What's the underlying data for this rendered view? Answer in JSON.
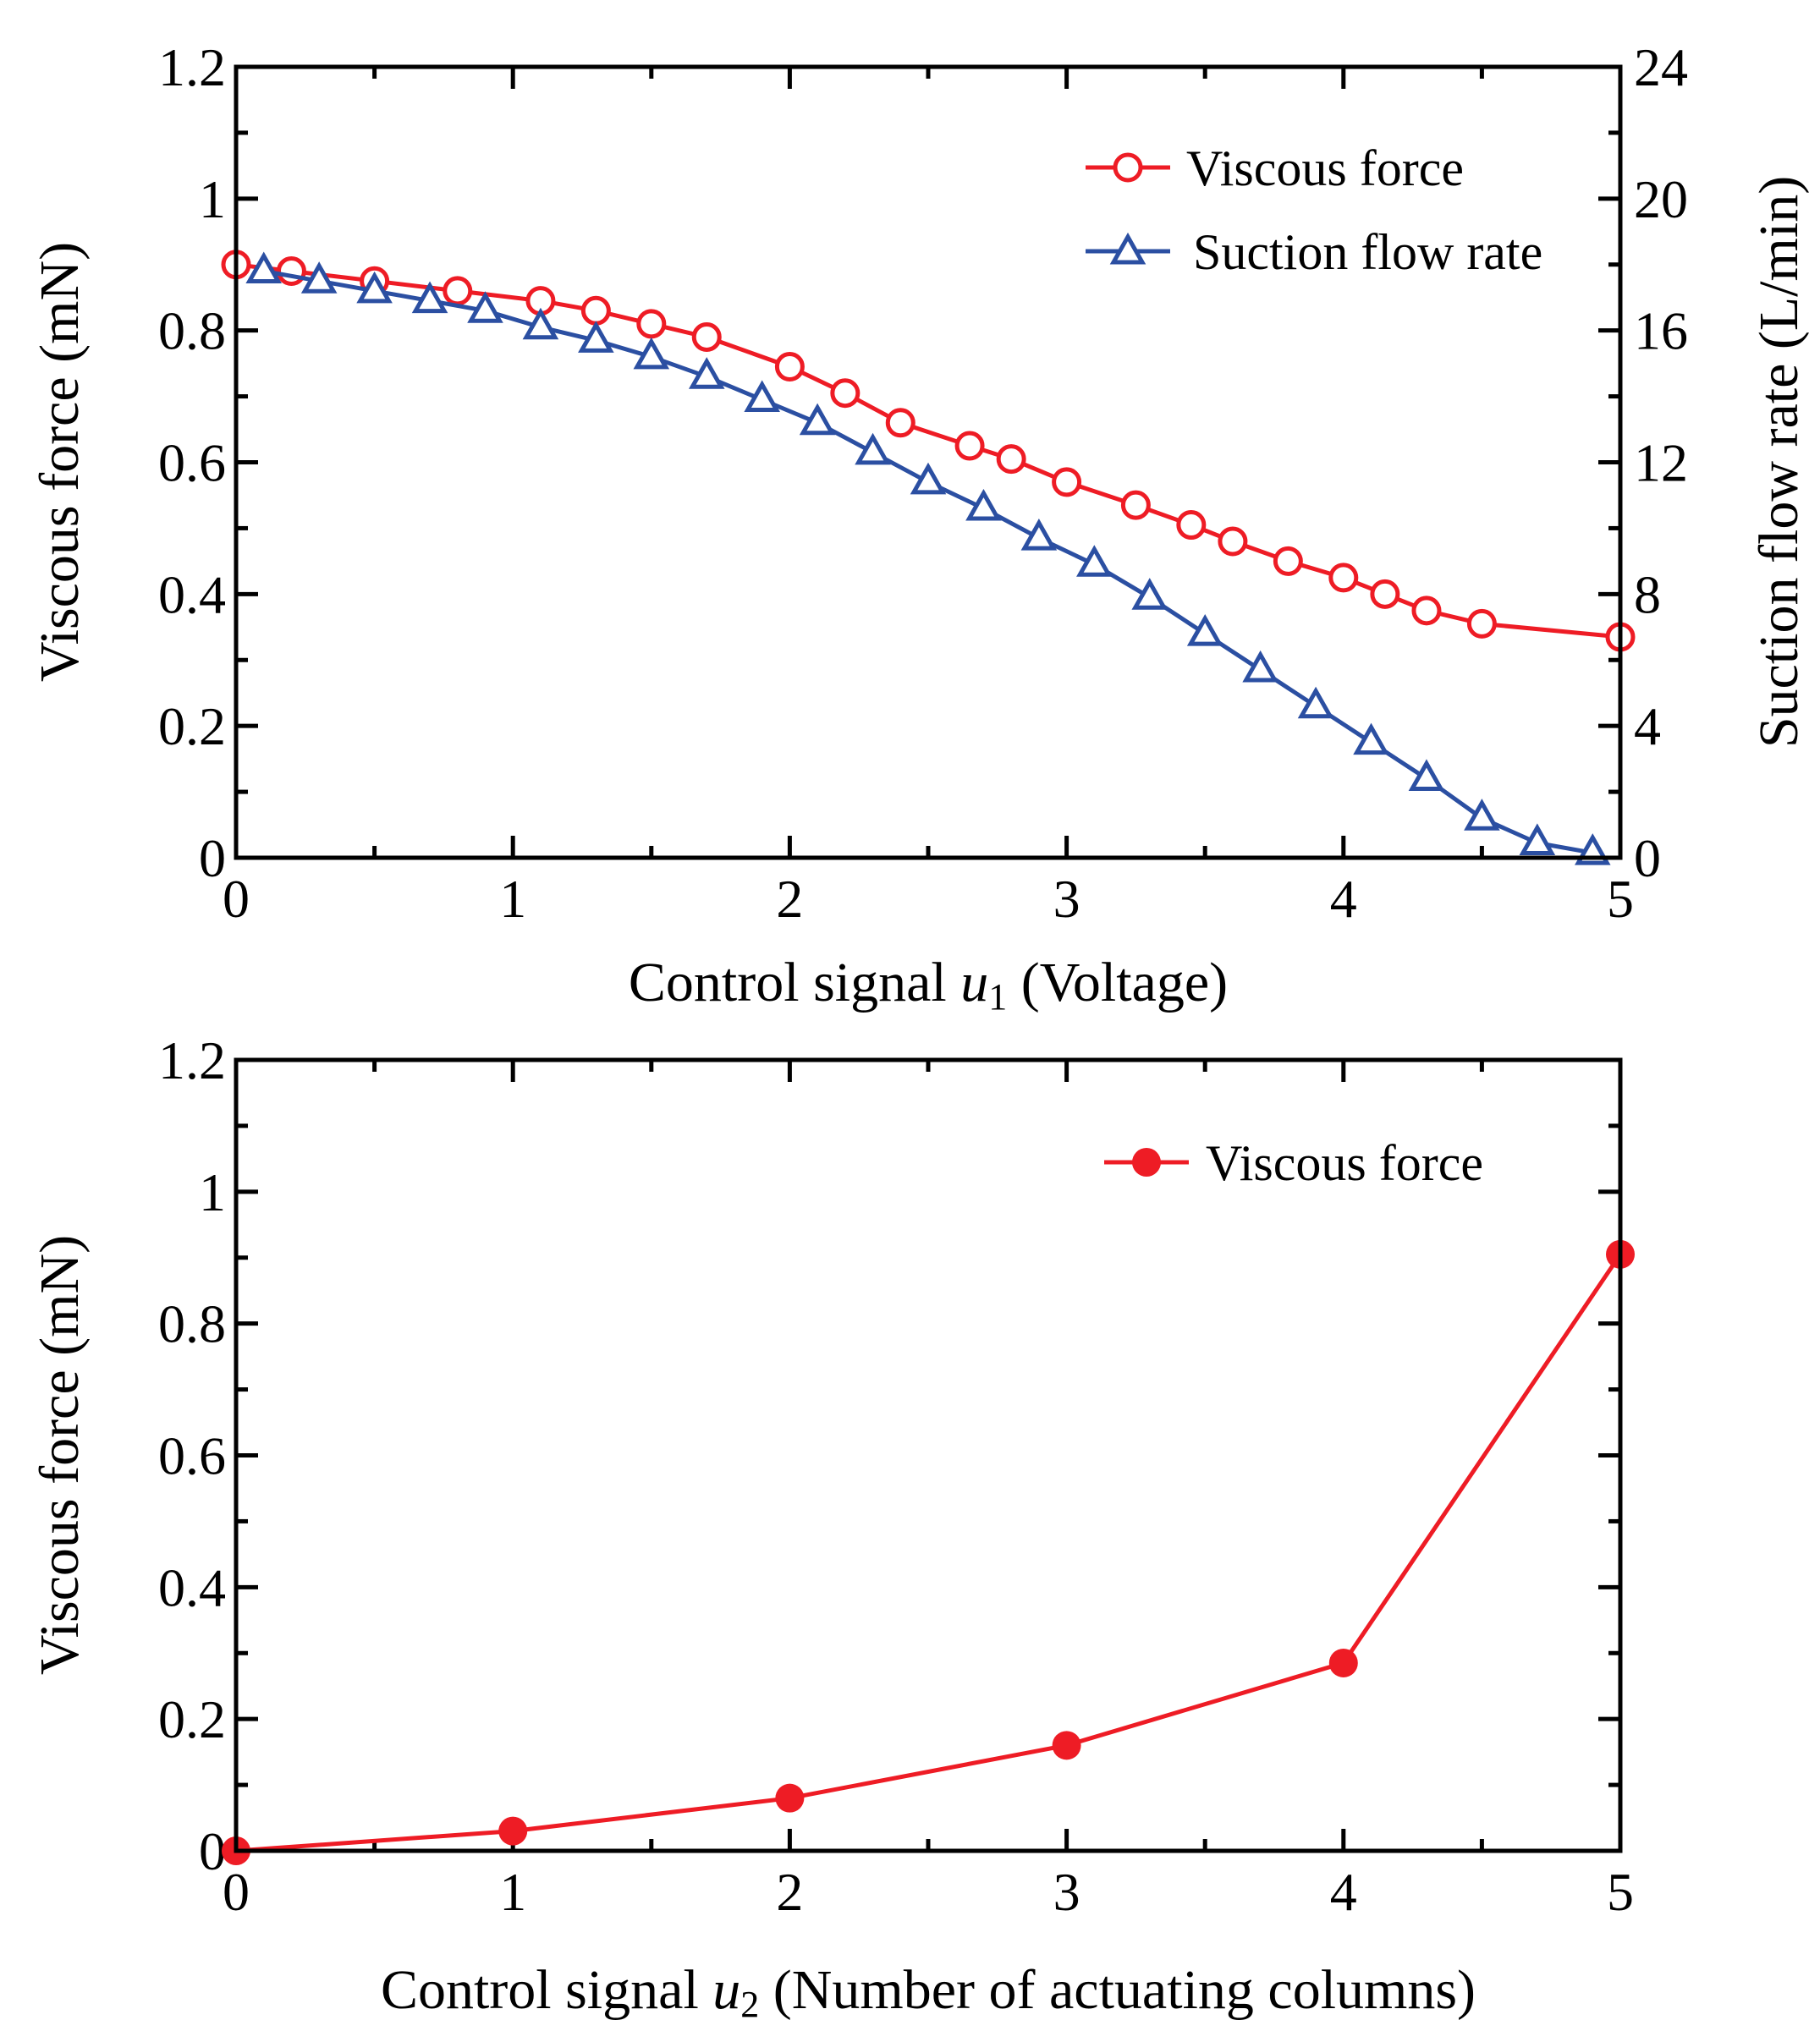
{
  "colors": {
    "red": "#ee1c25",
    "blue": "#2b4fa2",
    "axis": "#000000"
  },
  "chart_data": [
    {
      "type": "line",
      "xlabel_prefix": "Control signal ",
      "xlabel_var": "u",
      "xlabel_sub": "1",
      "xlabel_suffix": " (Voltage)",
      "ylabel": "Viscous force (mN)",
      "y2label": "Suction flow rate (L/min)",
      "xlim": [
        0,
        5
      ],
      "ylim": [
        0,
        1.2
      ],
      "y2lim": [
        0,
        24
      ],
      "x_ticks": [
        "0",
        "1",
        "2",
        "3",
        "4",
        "5"
      ],
      "y_ticks": [
        "0",
        "0.2",
        "0.4",
        "0.6",
        "0.8",
        "1",
        "1.2"
      ],
      "y2_ticks": [
        "0",
        "4",
        "8",
        "12",
        "16",
        "20",
        "24"
      ],
      "legend_position": "top-right",
      "series": [
        {
          "name": "Viscous force",
          "axis": "left",
          "marker": "open-circle",
          "color": "#ee1c25",
          "x": [
            0,
            0.2,
            0.5,
            0.8,
            1.1,
            1.3,
            1.5,
            1.7,
            2.0,
            2.2,
            2.4,
            2.65,
            2.8,
            3.0,
            3.25,
            3.45,
            3.6,
            3.8,
            4.0,
            4.15,
            4.3,
            4.5,
            5.0
          ],
          "y": [
            0.9,
            0.89,
            0.875,
            0.86,
            0.845,
            0.83,
            0.81,
            0.79,
            0.745,
            0.705,
            0.66,
            0.625,
            0.605,
            0.57,
            0.535,
            0.505,
            0.48,
            0.45,
            0.425,
            0.4,
            0.375,
            0.355,
            0.335
          ]
        },
        {
          "name": "Suction flow rate",
          "axis": "right",
          "marker": "open-triangle",
          "color": "#2b4fa2",
          "x": [
            0.1,
            0.3,
            0.5,
            0.7,
            0.9,
            1.1,
            1.3,
            1.5,
            1.7,
            1.9,
            2.1,
            2.3,
            2.5,
            2.7,
            2.9,
            3.1,
            3.3,
            3.5,
            3.7,
            3.9,
            4.1,
            4.3,
            4.5,
            4.7,
            4.9
          ],
          "y": [
            17.8,
            17.5,
            17.2,
            16.9,
            16.6,
            16.1,
            15.7,
            15.2,
            14.6,
            13.9,
            13.2,
            12.3,
            11.4,
            10.6,
            9.7,
            8.9,
            7.9,
            6.8,
            5.7,
            4.6,
            3.5,
            2.4,
            1.2,
            0.45,
            0.15
          ]
        }
      ]
    },
    {
      "type": "line",
      "xlabel_prefix": "Control signal ",
      "xlabel_var": "u",
      "xlabel_sub": "2",
      "xlabel_suffix": " (Number of actuating columns)",
      "ylabel": "Viscous force (mN)",
      "xlim": [
        0,
        5
      ],
      "ylim": [
        0,
        1.2
      ],
      "x_ticks": [
        "0",
        "1",
        "2",
        "3",
        "4",
        "5"
      ],
      "y_ticks": [
        "0",
        "0.2",
        "0.4",
        "0.6",
        "0.8",
        "1",
        "1.2"
      ],
      "legend_position": "top-right",
      "series": [
        {
          "name": "Viscous force",
          "axis": "left",
          "marker": "filled-circle",
          "color": "#ee1c25",
          "x": [
            0,
            1,
            2,
            3,
            4,
            5
          ],
          "y": [
            0,
            0.03,
            0.08,
            0.16,
            0.285,
            0.905
          ]
        }
      ]
    }
  ]
}
